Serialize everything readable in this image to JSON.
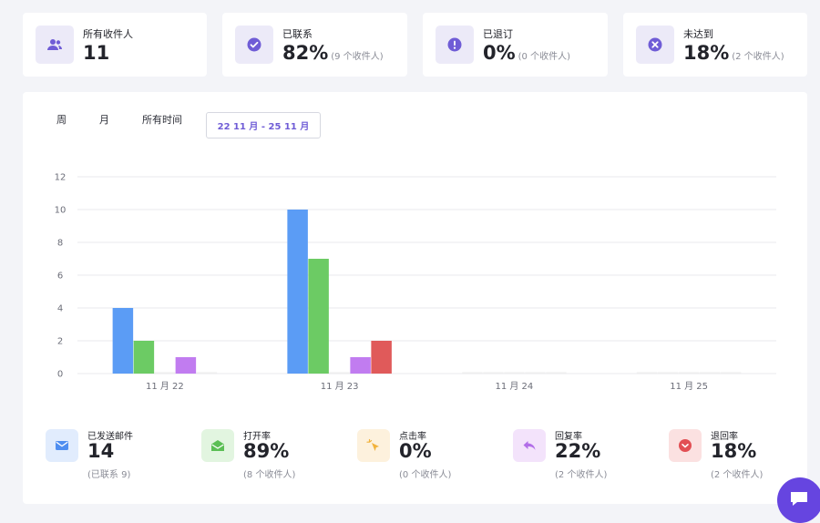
{
  "stats": [
    {
      "label": "所有收件人",
      "value": "11",
      "sub": "",
      "icon": "users-icon"
    },
    {
      "label": "已联系",
      "value": "82%",
      "sub": "(9 个收件人)",
      "icon": "check-circle-icon"
    },
    {
      "label": "已退订",
      "value": "0%",
      "sub": "(0 个收件人)",
      "icon": "alert-circle-icon"
    },
    {
      "label": "未达到",
      "value": "18%",
      "sub": "(2 个收件人)",
      "icon": "x-circle-icon"
    }
  ],
  "tabs": {
    "week": "周",
    "month": "月",
    "all_time": "所有时间"
  },
  "date_range": "22 11 月 - 25 11 月",
  "chart_data": {
    "type": "bar",
    "categories": [
      "11 月 22",
      "11 月 23",
      "11 月 24",
      "11 月 25"
    ],
    "series": [
      {
        "color": "#5b9cf5",
        "values": [
          4,
          10,
          0,
          0
        ]
      },
      {
        "color": "#6ccb64",
        "values": [
          2,
          7,
          0,
          0
        ]
      },
      {
        "color": "#eeeeee",
        "values": [
          0,
          0,
          0,
          0
        ]
      },
      {
        "color": "#c17cf0",
        "values": [
          1,
          1,
          0,
          0
        ]
      },
      {
        "color": "#e05a5a",
        "values": [
          0,
          2,
          0,
          0
        ]
      }
    ],
    "ylim": [
      0,
      12
    ],
    "yticks": [
      "0",
      "2",
      "4",
      "6",
      "8",
      "10",
      "12"
    ],
    "grid": true
  },
  "metrics": [
    {
      "label": "已发送邮件",
      "value": "14",
      "sub": "(已联系 9)",
      "icon": "mail-icon",
      "bg": "#e1ecfd",
      "fg": "#4f8ef0"
    },
    {
      "label": "打开率",
      "value": "89%",
      "sub": "(8 个收件人)",
      "icon": "open-mail-icon",
      "bg": "#e2f5e0",
      "fg": "#5bbf55"
    },
    {
      "label": "点击率",
      "value": "0%",
      "sub": "(0 个收件人)",
      "icon": "cursor-click-icon",
      "bg": "#fdf1dd",
      "fg": "#f1b23c"
    },
    {
      "label": "回复率",
      "value": "22%",
      "sub": "(2 个收件人)",
      "icon": "reply-icon",
      "bg": "#f3e3fb",
      "fg": "#b26ee8"
    },
    {
      "label": "退回率",
      "value": "18%",
      "sub": "(2 个收件人)",
      "icon": "bounce-icon",
      "bg": "#fbe1e1",
      "fg": "#e24f54"
    }
  ],
  "colors": {
    "accent": "#6f5cd6",
    "icon_bg": "#eceaf8"
  },
  "chat_icon": "chat-icon"
}
